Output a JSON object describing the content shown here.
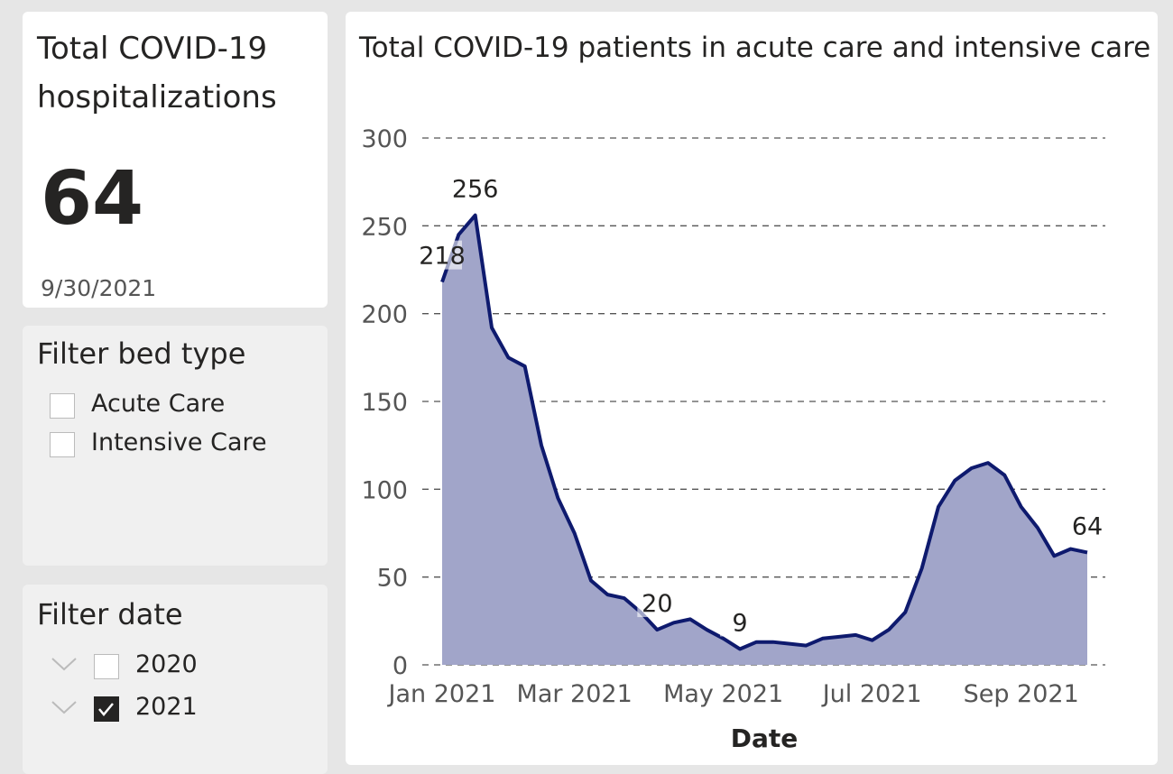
{
  "kpi_card": {
    "title": "Total COVID-19 hospitalizations",
    "value": 64,
    "date": "9/30/2021"
  },
  "bed_type_filter": {
    "title": "Filter bed type",
    "options": [
      {
        "label": "Acute Care",
        "checked": false
      },
      {
        "label": "Intensive Care",
        "checked": false
      }
    ]
  },
  "date_filter": {
    "title": "Filter date",
    "options": [
      {
        "label": "2020",
        "checked": false
      },
      {
        "label": "2021",
        "checked": true
      }
    ]
  },
  "chart_data": {
    "type": "area",
    "title": "Total COVID-19 patients in acute care and intensive care",
    "x_label": "Date",
    "categories": [
      "Jan 2021",
      null,
      null,
      null,
      null,
      null,
      null,
      null,
      "Mar 2021",
      null,
      null,
      null,
      null,
      null,
      null,
      null,
      null,
      "May 2021",
      null,
      null,
      null,
      null,
      null,
      null,
      null,
      null,
      "Jul 2021",
      null,
      null,
      null,
      null,
      null,
      null,
      null,
      null,
      "Sep 2021",
      null,
      null,
      null,
      null
    ],
    "values": [
      218,
      245,
      256,
      192,
      175,
      170,
      125,
      95,
      75,
      48,
      40,
      38,
      30,
      20,
      24,
      26,
      20,
      15,
      9,
      13,
      13,
      12,
      11,
      15,
      16,
      17,
      14,
      20,
      30,
      55,
      90,
      105,
      112,
      115,
      108,
      90,
      78,
      62,
      66,
      64
    ],
    "value_labels": [
      "218",
      null,
      "256",
      null,
      null,
      null,
      null,
      null,
      null,
      null,
      null,
      null,
      null,
      "20",
      null,
      null,
      null,
      null,
      "9",
      null,
      null,
      null,
      null,
      null,
      null,
      null,
      null,
      null,
      null,
      null,
      null,
      null,
      null,
      null,
      null,
      null,
      null,
      null,
      null,
      "64"
    ],
    "color": "#0e1a6e",
    "fill_color": "#a1a5c9",
    "ylim": [
      0,
      300
    ],
    "yticks": [
      0,
      50,
      100,
      150,
      200,
      250,
      300
    ],
    "grid": true
  }
}
